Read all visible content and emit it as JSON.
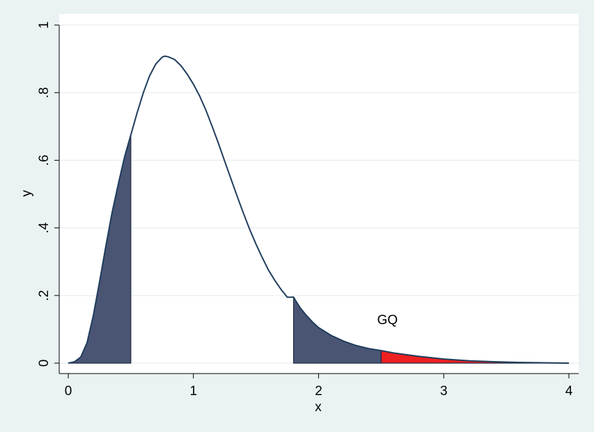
{
  "chart_data": {
    "type": "area",
    "title": "",
    "xlabel": "x",
    "ylabel": "y",
    "xlim": [
      0,
      4
    ],
    "ylim": [
      0,
      1
    ],
    "grid": true,
    "x_ticks": [
      {
        "value": 0,
        "label": "0"
      },
      {
        "value": 1,
        "label": "1"
      },
      {
        "value": 2,
        "label": "2"
      },
      {
        "value": 3,
        "label": "3"
      },
      {
        "value": 4,
        "label": "4"
      }
    ],
    "y_ticks": [
      {
        "value": 0,
        "label": "0"
      },
      {
        "value": 0.2,
        "label": ".2"
      },
      {
        "value": 0.4,
        "label": ".4"
      },
      {
        "value": 0.6,
        "label": ".6"
      },
      {
        "value": 0.8,
        "label": ".8"
      },
      {
        "value": 1,
        "label": "1"
      }
    ],
    "curve": {
      "color": "#1f3d5c",
      "points": [
        [
          0.0,
          0.0
        ],
        [
          0.05,
          0.004
        ],
        [
          0.1,
          0.018
        ],
        [
          0.15,
          0.06
        ],
        [
          0.2,
          0.14
        ],
        [
          0.25,
          0.24
        ],
        [
          0.3,
          0.345
        ],
        [
          0.35,
          0.445
        ],
        [
          0.4,
          0.53
        ],
        [
          0.45,
          0.61
        ],
        [
          0.5,
          0.675
        ],
        [
          0.55,
          0.74
        ],
        [
          0.6,
          0.8
        ],
        [
          0.65,
          0.85
        ],
        [
          0.7,
          0.885
        ],
        [
          0.75,
          0.905
        ],
        [
          0.77,
          0.908
        ],
        [
          0.8,
          0.906
        ],
        [
          0.85,
          0.898
        ],
        [
          0.9,
          0.88
        ],
        [
          0.95,
          0.855
        ],
        [
          1.0,
          0.825
        ],
        [
          1.05,
          0.79
        ],
        [
          1.1,
          0.748
        ],
        [
          1.15,
          0.7
        ],
        [
          1.2,
          0.65
        ],
        [
          1.25,
          0.597
        ],
        [
          1.3,
          0.545
        ],
        [
          1.35,
          0.493
        ],
        [
          1.4,
          0.443
        ],
        [
          1.45,
          0.395
        ],
        [
          1.5,
          0.352
        ],
        [
          1.55,
          0.312
        ],
        [
          1.6,
          0.275
        ],
        [
          1.65,
          0.245
        ],
        [
          1.7,
          0.218
        ],
        [
          1.75,
          0.195
        ],
        [
          1.8,
          0.195
        ],
        [
          1.85,
          0.165
        ],
        [
          1.9,
          0.142
        ],
        [
          1.95,
          0.122
        ],
        [
          2.0,
          0.105
        ],
        [
          2.1,
          0.082
        ],
        [
          2.2,
          0.065
        ],
        [
          2.3,
          0.052
        ],
        [
          2.4,
          0.043
        ],
        [
          2.5,
          0.037
        ],
        [
          2.6,
          0.03
        ],
        [
          2.8,
          0.02
        ],
        [
          3.0,
          0.012
        ],
        [
          3.2,
          0.007
        ],
        [
          3.4,
          0.004
        ],
        [
          3.6,
          0.002
        ],
        [
          3.8,
          0.001
        ],
        [
          4.0,
          0.0
        ]
      ]
    },
    "shaded_regions": [
      {
        "from": 0.0,
        "to": 0.5,
        "color": "#4a5573"
      },
      {
        "from": 1.8,
        "to": 2.5,
        "color": "#4a5573"
      },
      {
        "from": 2.5,
        "to": 4.0,
        "color": "#ee2020"
      }
    ],
    "annotations": [
      {
        "text": "GQ",
        "x": 2.55,
        "y": 0.115
      }
    ]
  }
}
